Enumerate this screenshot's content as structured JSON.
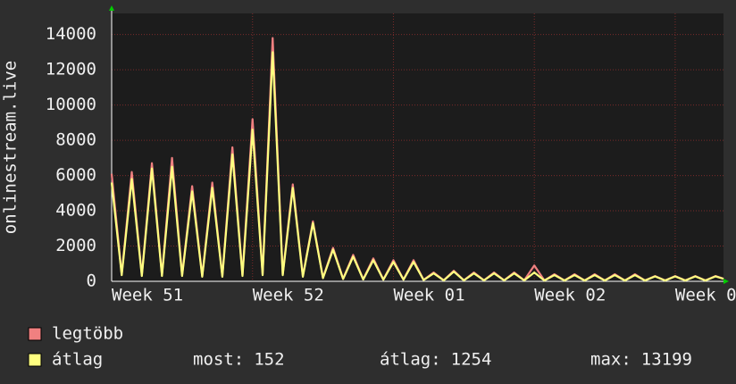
{
  "chart_data": {
    "type": "line",
    "y_label": "onlinestream.live",
    "x": [
      0,
      0.5,
      1,
      1.5,
      2,
      2.5,
      3,
      3.5,
      4,
      4.5,
      5,
      5.5,
      6,
      6.5,
      7,
      7.5,
      8,
      8.5,
      9,
      9.5,
      10,
      10.5,
      11,
      11.5,
      12,
      12.5,
      13,
      13.5,
      14,
      14.5,
      15,
      15.5,
      16,
      16.5,
      17,
      17.5,
      18,
      18.5,
      19,
      19.5,
      20,
      20.5,
      21,
      21.5,
      22,
      22.5,
      23,
      23.5,
      24,
      24.5,
      25,
      25.5,
      26,
      26.5,
      27,
      27.5,
      28,
      28.5,
      29,
      29.5,
      30,
      30.4
    ],
    "series": [
      {
        "name": "legtöbb",
        "color": "#f08080",
        "values": [
          6100,
          400,
          6200,
          350,
          6700,
          350,
          7000,
          350,
          5400,
          300,
          5600,
          300,
          7600,
          350,
          9200,
          400,
          13800,
          400,
          5500,
          300,
          3400,
          200,
          1900,
          150,
          1500,
          120,
          1300,
          100,
          1200,
          100,
          1200,
          80,
          500,
          60,
          600,
          60,
          500,
          60,
          500,
          60,
          500,
          60,
          900,
          50,
          400,
          50,
          400,
          50,
          400,
          50,
          400,
          50,
          400,
          50,
          300,
          50,
          300,
          50,
          300,
          50,
          300,
          152
        ]
      },
      {
        "name": "átlag",
        "color": "#ffff80",
        "values": [
          5600,
          350,
          5800,
          300,
          6400,
          300,
          6500,
          300,
          5100,
          260,
          5300,
          260,
          7200,
          300,
          8600,
          350,
          13000,
          350,
          5300,
          260,
          3300,
          180,
          1800,
          130,
          1400,
          100,
          1200,
          90,
          1100,
          90,
          1100,
          70,
          450,
          50,
          550,
          50,
          450,
          50,
          450,
          50,
          450,
          50,
          500,
          45,
          350,
          45,
          350,
          45,
          350,
          45,
          350,
          45,
          350,
          45,
          280,
          45,
          280,
          45,
          280,
          45,
          280,
          140
        ]
      }
    ],
    "xlim": [
      0,
      30.4
    ],
    "xticks": [
      {
        "value": 0,
        "label": "Week 51"
      },
      {
        "value": 7,
        "label": "Week 52"
      },
      {
        "value": 14,
        "label": "Week 01"
      },
      {
        "value": 21,
        "label": "Week 02"
      },
      {
        "value": 28,
        "label": "Week 0"
      }
    ],
    "ylim": [
      0,
      15200
    ],
    "yticks": [
      0,
      2000,
      4000,
      6000,
      8000,
      10000,
      12000,
      14000
    ],
    "grid": true,
    "stats": [
      {
        "label": "most:",
        "value": 152
      },
      {
        "label": "átlag:",
        "value": 1254
      },
      {
        "label": "max:",
        "value": 13199
      }
    ]
  }
}
